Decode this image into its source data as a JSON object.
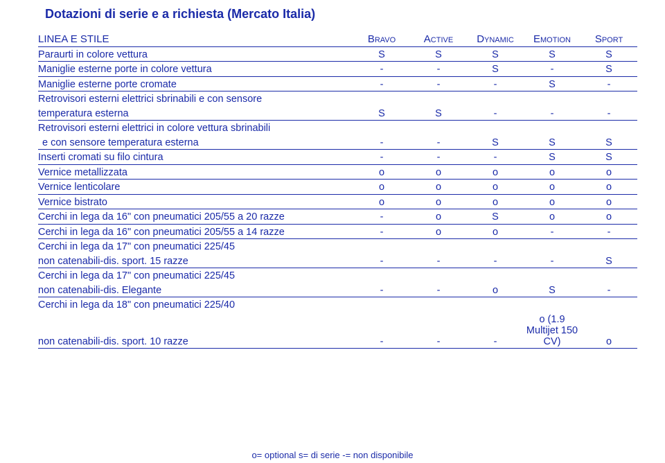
{
  "title": "Dotazioni di serie e a richiesta (Mercato Italia)",
  "section": "LINEA E STILE",
  "columns": [
    "Bravo",
    "Active",
    "Dynamic",
    "Emotion",
    "Sport"
  ],
  "rows": [
    {
      "label": "Paraurti in colore vettura",
      "cells": [
        "S",
        "S",
        "S",
        "S",
        "S"
      ]
    },
    {
      "label": "Maniglie esterne porte in colore vettura",
      "cells": [
        "-",
        "-",
        "S",
        "-",
        "S"
      ]
    },
    {
      "label": "Maniglie esterne porte cromate",
      "cells": [
        "-",
        "-",
        "-",
        "S",
        "-"
      ]
    },
    {
      "label": "Retrovisori esterni elettrici sbrinabili e con sensore",
      "noborder": true,
      "cells": [
        "",
        "",
        "",
        "",
        ""
      ]
    },
    {
      "label": "temperatura esterna",
      "cells": [
        "S",
        "S",
        "-",
        "-",
        "-"
      ]
    },
    {
      "label": "Retrovisori esterni elettrici in colore vettura sbrinabili",
      "noborder": true,
      "cells": [
        "",
        "",
        "",
        "",
        ""
      ]
    },
    {
      "label": " e con sensore temperatura esterna",
      "indent": true,
      "cells": [
        "-",
        "-",
        "S",
        "S",
        "S"
      ]
    },
    {
      "label": "Inserti cromati su filo cintura",
      "cells": [
        "-",
        "-",
        "-",
        "S",
        "S"
      ]
    },
    {
      "label": "Vernice metallizzata",
      "cells": [
        "o",
        "o",
        "o",
        "o",
        "o"
      ]
    },
    {
      "label": "Vernice lenticolare",
      "cells": [
        "o",
        "o",
        "o",
        "o",
        "o"
      ]
    },
    {
      "label": "Vernice bistrato",
      "cells": [
        "o",
        "o",
        "o",
        "o",
        "o"
      ]
    },
    {
      "label": "Cerchi in lega da 16\" con pneumatici 205/55 a 20 razze",
      "cells": [
        "-",
        "o",
        "S",
        "o",
        "o"
      ]
    },
    {
      "label": "Cerchi in lega da 16\" con pneumatici 205/55 a 14 razze",
      "cells": [
        "-",
        "o",
        "o",
        "-",
        "-"
      ]
    },
    {
      "label": "Cerchi in lega da 17\" con pneumatici 225/45",
      "noborder": true,
      "cells": [
        "",
        "",
        "",
        "",
        ""
      ]
    },
    {
      "label": "non catenabili-dis. sport. 15 razze",
      "cells": [
        "-",
        "-",
        "-",
        "-",
        "S"
      ]
    },
    {
      "label": "Cerchi in lega da 17\" con pneumatici 225/45",
      "noborder": true,
      "cells": [
        "",
        "",
        "",
        "",
        ""
      ]
    },
    {
      "label": "non catenabili-dis. Elegante",
      "cells": [
        "-",
        "-",
        "o",
        "S",
        "-"
      ]
    },
    {
      "label": "Cerchi in lega da 18\" con pneumatici 225/40",
      "noborder": true,
      "cells": [
        "",
        "",
        "",
        "",
        ""
      ]
    },
    {
      "label": "non catenabili-dis. sport. 10 razze",
      "cells": [
        "-",
        "-",
        "-",
        "o (1.9 Multijet 150 CV)",
        "o"
      ]
    }
  ],
  "legend": "o= optional s= di serie -= non disponibile",
  "colors": {
    "text": "#1a2aa8",
    "background": "#ffffff"
  }
}
